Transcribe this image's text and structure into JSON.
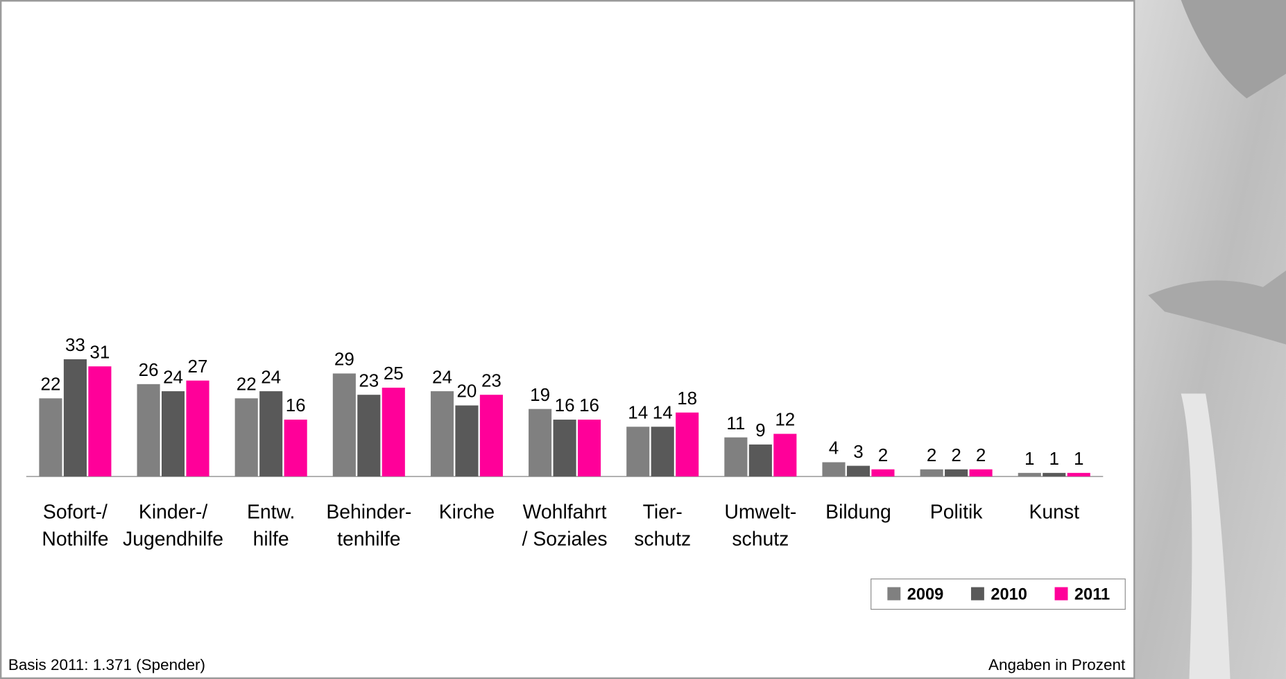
{
  "chart_data": {
    "type": "bar",
    "categories": [
      "Sofort-/\nNothilfe",
      "Kinder-/\nJugendhilfe",
      "Entw.\nhilfe",
      "Behinder-\ntenhilfe",
      "Kirche",
      "Wohlfahrt\n/ Soziales",
      "Tier-\nschutz",
      "Umwelt-\nschutz",
      "Bildung",
      "Politik",
      "Kunst"
    ],
    "series": [
      {
        "name": "2009",
        "color": "#808080",
        "values": [
          22,
          26,
          22,
          29,
          24,
          19,
          14,
          11,
          4,
          2,
          1
        ]
      },
      {
        "name": "2010",
        "color": "#595959",
        "values": [
          33,
          24,
          24,
          23,
          20,
          16,
          14,
          9,
          3,
          2,
          1
        ]
      },
      {
        "name": "2011",
        "color": "#ff0099",
        "values": [
          31,
          27,
          16,
          25,
          23,
          16,
          18,
          12,
          2,
          2,
          1
        ]
      }
    ],
    "ylim": [
      0,
      100
    ],
    "legend": "bottom-right",
    "annotations": [
      "Basis 2011: 1.371 (Spender)",
      "Angaben in Prozent"
    ]
  }
}
